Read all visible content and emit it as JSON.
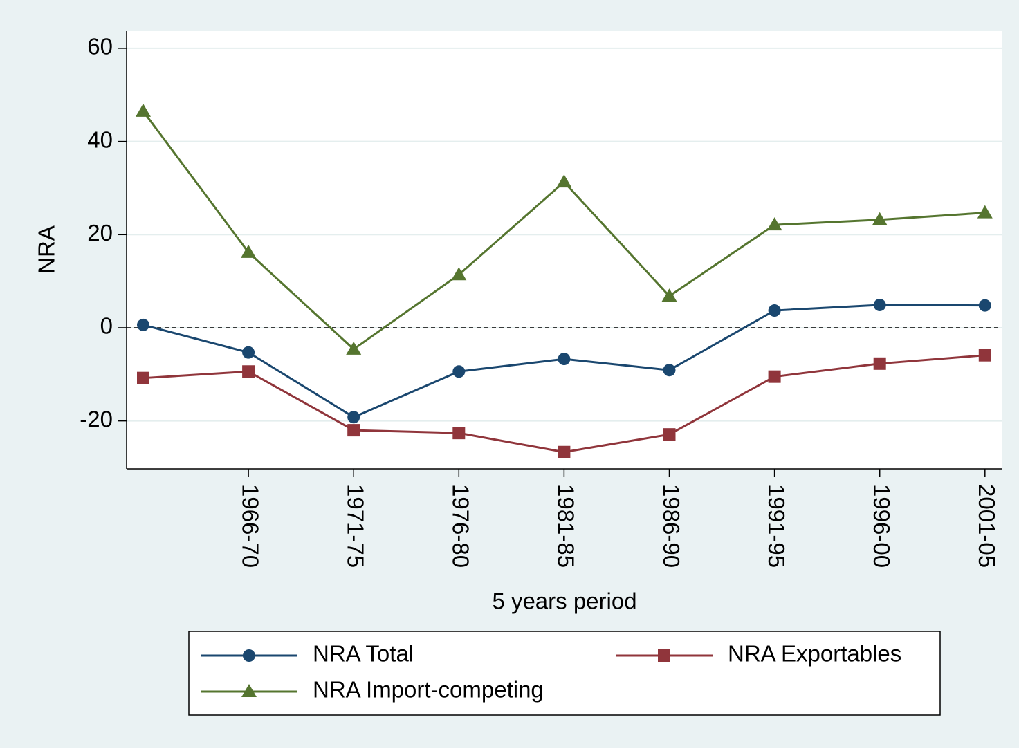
{
  "chart_data": {
    "type": "line",
    "xlabel": "5 years period",
    "ylabel": "NRA",
    "categories": [
      null,
      "1966-70",
      "1971-75",
      "1976-80",
      "1981-85",
      "1986-90",
      "1991-95",
      "1996-00",
      "2001-05"
    ],
    "series": [
      {
        "name": "NRA Total",
        "color": "#1a476f",
        "marker": "circle",
        "values": [
          0.6,
          -5.3,
          -19.2,
          -9.4,
          -6.7,
          -9.1,
          3.7,
          4.9,
          4.8
        ]
      },
      {
        "name": "NRA Exportables",
        "color": "#90353b",
        "marker": "square",
        "values": [
          -10.8,
          -9.4,
          -22.0,
          -22.6,
          -26.7,
          -22.9,
          -10.5,
          -7.7,
          -5.9
        ]
      },
      {
        "name": "NRA Import-competing",
        "color": "#55752f",
        "marker": "triangle",
        "values": [
          46.5,
          16.2,
          -4.6,
          11.4,
          31.3,
          6.8,
          22.1,
          23.2,
          24.7
        ]
      }
    ],
    "ylim": [
      -30.3,
      63.7
    ],
    "yticks": [
      -20,
      0,
      20,
      40,
      60
    ],
    "grid": true,
    "reference_line": 0
  }
}
